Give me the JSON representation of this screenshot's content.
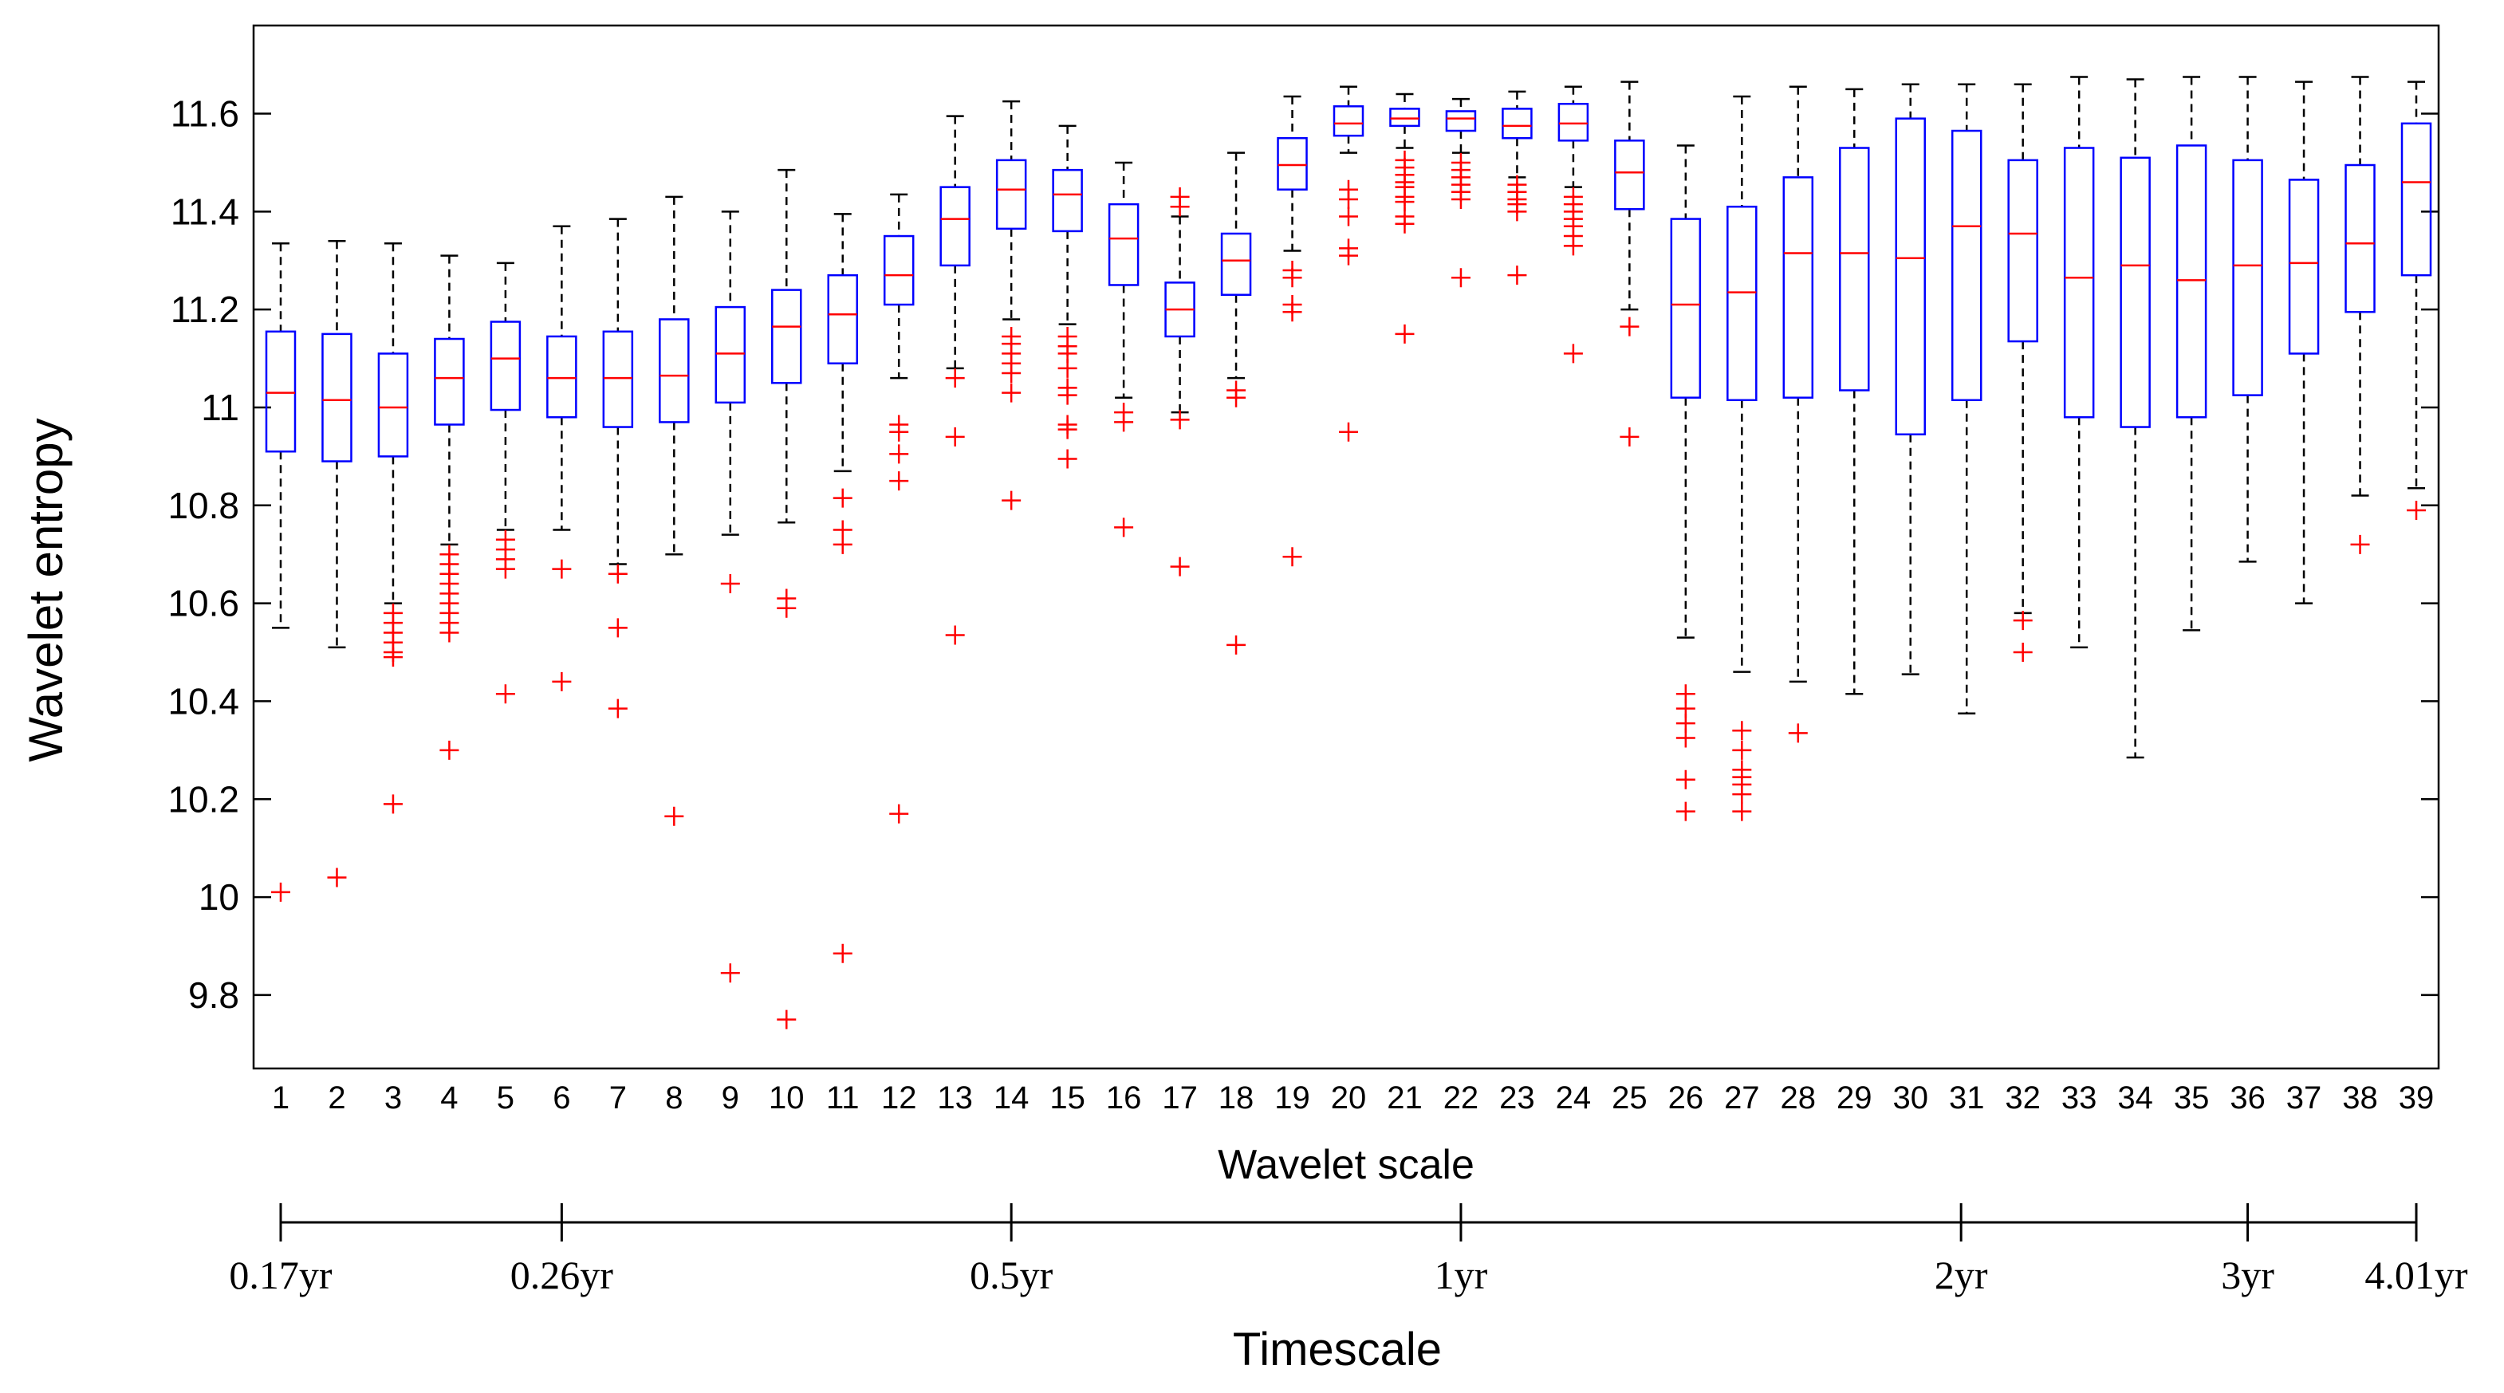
{
  "chart_data": {
    "type": "boxplot",
    "xlabel": "Wavelet scale",
    "ylabel": "Wavelet entropy",
    "ylim": [
      9.65,
      11.78
    ],
    "yticks": [
      9.8,
      10,
      10.2,
      10.4,
      10.6,
      10.8,
      11,
      11.2,
      11.4,
      11.6
    ],
    "ytick_labels": [
      "9.8",
      "10",
      "10.2",
      "10.4",
      "10.6",
      "10.8",
      "11",
      "11.2",
      "11.4",
      "11.6"
    ],
    "categories": [
      "1",
      "2",
      "3",
      "4",
      "5",
      "6",
      "7",
      "8",
      "9",
      "10",
      "11",
      "12",
      "13",
      "14",
      "15",
      "16",
      "17",
      "18",
      "19",
      "20",
      "21",
      "22",
      "23",
      "24",
      "25",
      "26",
      "27",
      "28",
      "29",
      "30",
      "31",
      "32",
      "33",
      "34",
      "35",
      "36",
      "37",
      "38",
      "39"
    ],
    "boxes": [
      {
        "whislo": 10.55,
        "q1": 10.91,
        "med": 11.03,
        "q3": 11.155,
        "whishi": 11.335,
        "fliers": [
          10.01
        ]
      },
      {
        "whislo": 10.51,
        "q1": 10.89,
        "med": 11.015,
        "q3": 11.15,
        "whishi": 11.34,
        "fliers": [
          10.04
        ]
      },
      {
        "whislo": 10.6,
        "q1": 10.9,
        "med": 11.0,
        "q3": 11.11,
        "whishi": 11.335,
        "fliers": [
          10.58,
          10.56,
          10.54,
          10.52,
          10.5,
          10.49,
          10.19
        ]
      },
      {
        "whislo": 10.72,
        "q1": 10.965,
        "med": 11.06,
        "q3": 11.14,
        "whishi": 11.31,
        "fliers": [
          10.7,
          10.68,
          10.66,
          10.64,
          10.62,
          10.6,
          10.58,
          10.56,
          10.54,
          10.3
        ]
      },
      {
        "whislo": 10.75,
        "q1": 10.995,
        "med": 11.1,
        "q3": 11.175,
        "whishi": 11.295,
        "fliers": [
          10.73,
          10.71,
          10.69,
          10.67,
          10.415
        ]
      },
      {
        "whislo": 10.75,
        "q1": 10.98,
        "med": 11.06,
        "q3": 11.145,
        "whishi": 11.37,
        "fliers": [
          10.67,
          10.44
        ]
      },
      {
        "whislo": 10.68,
        "q1": 10.96,
        "med": 11.06,
        "q3": 11.155,
        "whishi": 11.385,
        "fliers": [
          10.66,
          10.55,
          10.385
        ]
      },
      {
        "whislo": 10.7,
        "q1": 10.97,
        "med": 11.065,
        "q3": 11.18,
        "whishi": 11.43,
        "fliers": [
          10.165
        ]
      },
      {
        "whislo": 10.74,
        "q1": 11.01,
        "med": 11.11,
        "q3": 11.205,
        "whishi": 11.4,
        "fliers": [
          10.64,
          9.845
        ]
      },
      {
        "whislo": 10.765,
        "q1": 11.05,
        "med": 11.165,
        "q3": 11.24,
        "whishi": 11.485,
        "fliers": [
          10.61,
          10.59,
          9.75
        ]
      },
      {
        "whislo": 10.87,
        "q1": 11.09,
        "med": 11.19,
        "q3": 11.27,
        "whishi": 11.395,
        "fliers": [
          10.815,
          10.75,
          10.72,
          9.885
        ]
      },
      {
        "whislo": 11.06,
        "q1": 11.21,
        "med": 11.27,
        "q3": 11.35,
        "whishi": 11.435,
        "fliers": [
          10.965,
          10.95,
          10.905,
          10.85,
          10.17
        ]
      },
      {
        "whislo": 11.08,
        "q1": 11.29,
        "med": 11.385,
        "q3": 11.45,
        "whishi": 11.595,
        "fliers": [
          11.06,
          10.94,
          10.535
        ]
      },
      {
        "whislo": 11.18,
        "q1": 11.365,
        "med": 11.445,
        "q3": 11.505,
        "whishi": 11.625,
        "fliers": [
          11.145,
          11.13,
          11.11,
          11.09,
          11.07,
          11.03,
          10.81
        ]
      },
      {
        "whislo": 11.17,
        "q1": 11.36,
        "med": 11.435,
        "q3": 11.485,
        "whishi": 11.575,
        "fliers": [
          11.145,
          11.125,
          11.11,
          11.08,
          11.04,
          11.025,
          10.965,
          10.955,
          10.895
        ]
      },
      {
        "whislo": 11.02,
        "q1": 11.25,
        "med": 11.345,
        "q3": 11.415,
        "whishi": 11.5,
        "fliers": [
          10.99,
          10.97,
          10.755
        ]
      },
      {
        "whislo": 10.99,
        "q1": 11.145,
        "med": 11.2,
        "q3": 11.255,
        "whishi": 11.39,
        "fliers": [
          11.43,
          11.41,
          10.975,
          10.675
        ]
      },
      {
        "whislo": 11.06,
        "q1": 11.23,
        "med": 11.3,
        "q3": 11.355,
        "whishi": 11.52,
        "fliers": [
          11.035,
          11.02,
          10.515
        ]
      },
      {
        "whislo": 11.32,
        "q1": 11.445,
        "med": 11.495,
        "q3": 11.55,
        "whishi": 11.635,
        "fliers": [
          11.28,
          11.265,
          11.21,
          11.195,
          10.695
        ]
      },
      {
        "whislo": 11.52,
        "q1": 11.555,
        "med": 11.58,
        "q3": 11.615,
        "whishi": 11.655,
        "fliers": [
          11.445,
          11.425,
          11.39,
          11.325,
          11.31,
          10.95
        ]
      },
      {
        "whislo": 11.53,
        "q1": 11.575,
        "med": 11.59,
        "q3": 11.61,
        "whishi": 11.64,
        "fliers": [
          11.505,
          11.49,
          11.475,
          11.46,
          11.45,
          11.43,
          11.42,
          11.39,
          11.375,
          11.15
        ]
      },
      {
        "whislo": 11.52,
        "q1": 11.565,
        "med": 11.59,
        "q3": 11.605,
        "whishi": 11.63,
        "fliers": [
          11.5,
          11.485,
          11.47,
          11.455,
          11.44,
          11.425,
          11.265
        ]
      },
      {
        "whislo": 11.47,
        "q1": 11.55,
        "med": 11.575,
        "q3": 11.61,
        "whishi": 11.645,
        "fliers": [
          11.455,
          11.44,
          11.425,
          11.415,
          11.4,
          11.27
        ]
      },
      {
        "whislo": 11.45,
        "q1": 11.545,
        "med": 11.58,
        "q3": 11.62,
        "whishi": 11.655,
        "fliers": [
          11.43,
          11.415,
          11.4,
          11.385,
          11.37,
          11.35,
          11.33,
          11.11
        ]
      },
      {
        "whislo": 11.2,
        "q1": 11.405,
        "med": 11.48,
        "q3": 11.545,
        "whishi": 11.665,
        "fliers": [
          11.165,
          10.94
        ]
      },
      {
        "whislo": 10.53,
        "q1": 11.02,
        "med": 11.21,
        "q3": 11.385,
        "whishi": 11.535,
        "fliers": [
          10.415,
          10.385,
          10.355,
          10.325,
          10.24,
          10.175
        ]
      },
      {
        "whislo": 10.46,
        "q1": 11.015,
        "med": 11.235,
        "q3": 11.41,
        "whishi": 11.635,
        "fliers": [
          10.34,
          10.3,
          10.26,
          10.245,
          10.23,
          10.21,
          10.175
        ]
      },
      {
        "whislo": 10.44,
        "q1": 11.02,
        "med": 11.315,
        "q3": 11.47,
        "whishi": 11.655,
        "fliers": [
          10.335
        ]
      },
      {
        "whislo": 10.415,
        "q1": 11.035,
        "med": 11.315,
        "q3": 11.53,
        "whishi": 11.65,
        "fliers": []
      },
      {
        "whislo": 10.455,
        "q1": 10.945,
        "med": 11.305,
        "q3": 11.59,
        "whishi": 11.66,
        "fliers": []
      },
      {
        "whislo": 10.375,
        "q1": 11.015,
        "med": 11.37,
        "q3": 11.565,
        "whishi": 11.66,
        "fliers": []
      },
      {
        "whislo": 10.58,
        "q1": 11.135,
        "med": 11.355,
        "q3": 11.505,
        "whishi": 11.66,
        "fliers": [
          10.565,
          10.5
        ]
      },
      {
        "whislo": 10.51,
        "q1": 10.98,
        "med": 11.265,
        "q3": 11.53,
        "whishi": 11.675,
        "fliers": []
      },
      {
        "whislo": 10.285,
        "q1": 10.96,
        "med": 11.29,
        "q3": 11.51,
        "whishi": 11.67,
        "fliers": []
      },
      {
        "whislo": 10.545,
        "q1": 10.98,
        "med": 11.26,
        "q3": 11.535,
        "whishi": 11.675,
        "fliers": []
      },
      {
        "whislo": 10.685,
        "q1": 11.025,
        "med": 11.29,
        "q3": 11.505,
        "whishi": 11.675,
        "fliers": []
      },
      {
        "whislo": 10.6,
        "q1": 11.11,
        "med": 11.295,
        "q3": 11.465,
        "whishi": 11.665,
        "fliers": []
      },
      {
        "whislo": 10.82,
        "q1": 11.195,
        "med": 11.335,
        "q3": 11.495,
        "whishi": 11.675,
        "fliers": [
          10.72
        ]
      },
      {
        "whislo": 10.835,
        "q1": 11.27,
        "med": 11.46,
        "q3": 11.58,
        "whishi": 11.665,
        "fliers": [
          10.79
        ]
      }
    ],
    "box_color": "#0000ff",
    "median_color": "#ff0000",
    "flier_color": "#ff0000",
    "whisker_color": "#000000",
    "timescale": {
      "label": "Timescale",
      "ticks": [
        {
          "scale": 1,
          "label": "0.17yr"
        },
        {
          "scale": 6,
          "label": "0.26yr"
        },
        {
          "scale": 14,
          "label": "0.5yr"
        },
        {
          "scale": 22,
          "label": "1yr"
        },
        {
          "scale": 30.9,
          "label": "2yr"
        },
        {
          "scale": 36,
          "label": "3yr"
        },
        {
          "scale": 39,
          "label": "4.01yr"
        }
      ]
    }
  }
}
